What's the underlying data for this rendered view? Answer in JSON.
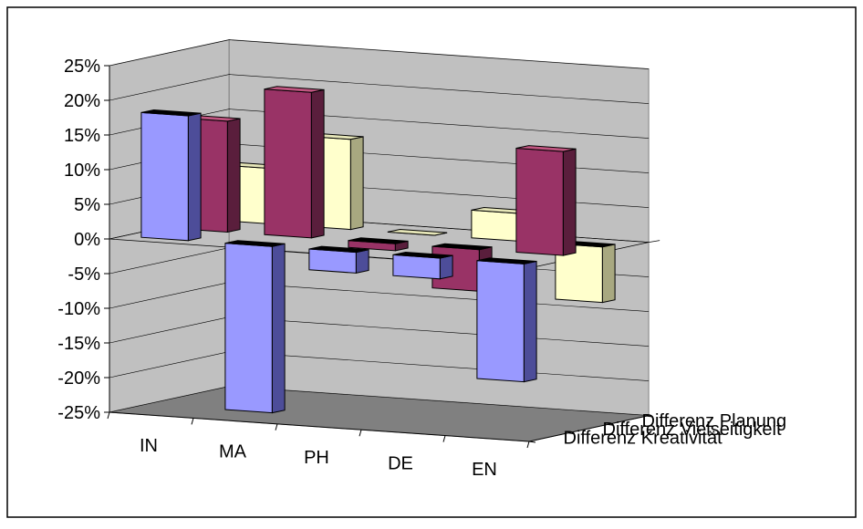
{
  "chart_data": {
    "type": "bar",
    "subtype": "3d-clustered-column",
    "categories": [
      "IN",
      "MA",
      "PH",
      "DE",
      "EN"
    ],
    "series": [
      {
        "name": "Differenz Kreativität",
        "values": [
          18,
          -24,
          -3,
          -3,
          -17
        ]
      },
      {
        "name": "Differenz Vielseitigkeit",
        "values": [
          16,
          21,
          -1,
          -6,
          15
        ]
      },
      {
        "name": "Differenz Planung",
        "values": [
          8,
          13,
          0,
          4,
          -8
        ]
      }
    ],
    "y_ticks": [
      "25%",
      "20%",
      "15%",
      "10%",
      "5%",
      "0%",
      "-5%",
      "-10%",
      "-15%",
      "-20%",
      "-25%"
    ],
    "ylim": [
      -25,
      25
    ],
    "y_unit": "%",
    "grid": true,
    "colors": {
      "series": [
        "#9999ff",
        "#993366",
        "#ffffcc"
      ],
      "series_side": [
        "#4d4d99",
        "#5a1e3c",
        "#a8a880"
      ],
      "series_top": [
        "#000000",
        "#c05580",
        "#e6e6b8"
      ],
      "back_wall": "#c0c0c0",
      "floor": "#808080",
      "gridline": "#000000"
    },
    "legend_position": "depth-axis-right"
  }
}
